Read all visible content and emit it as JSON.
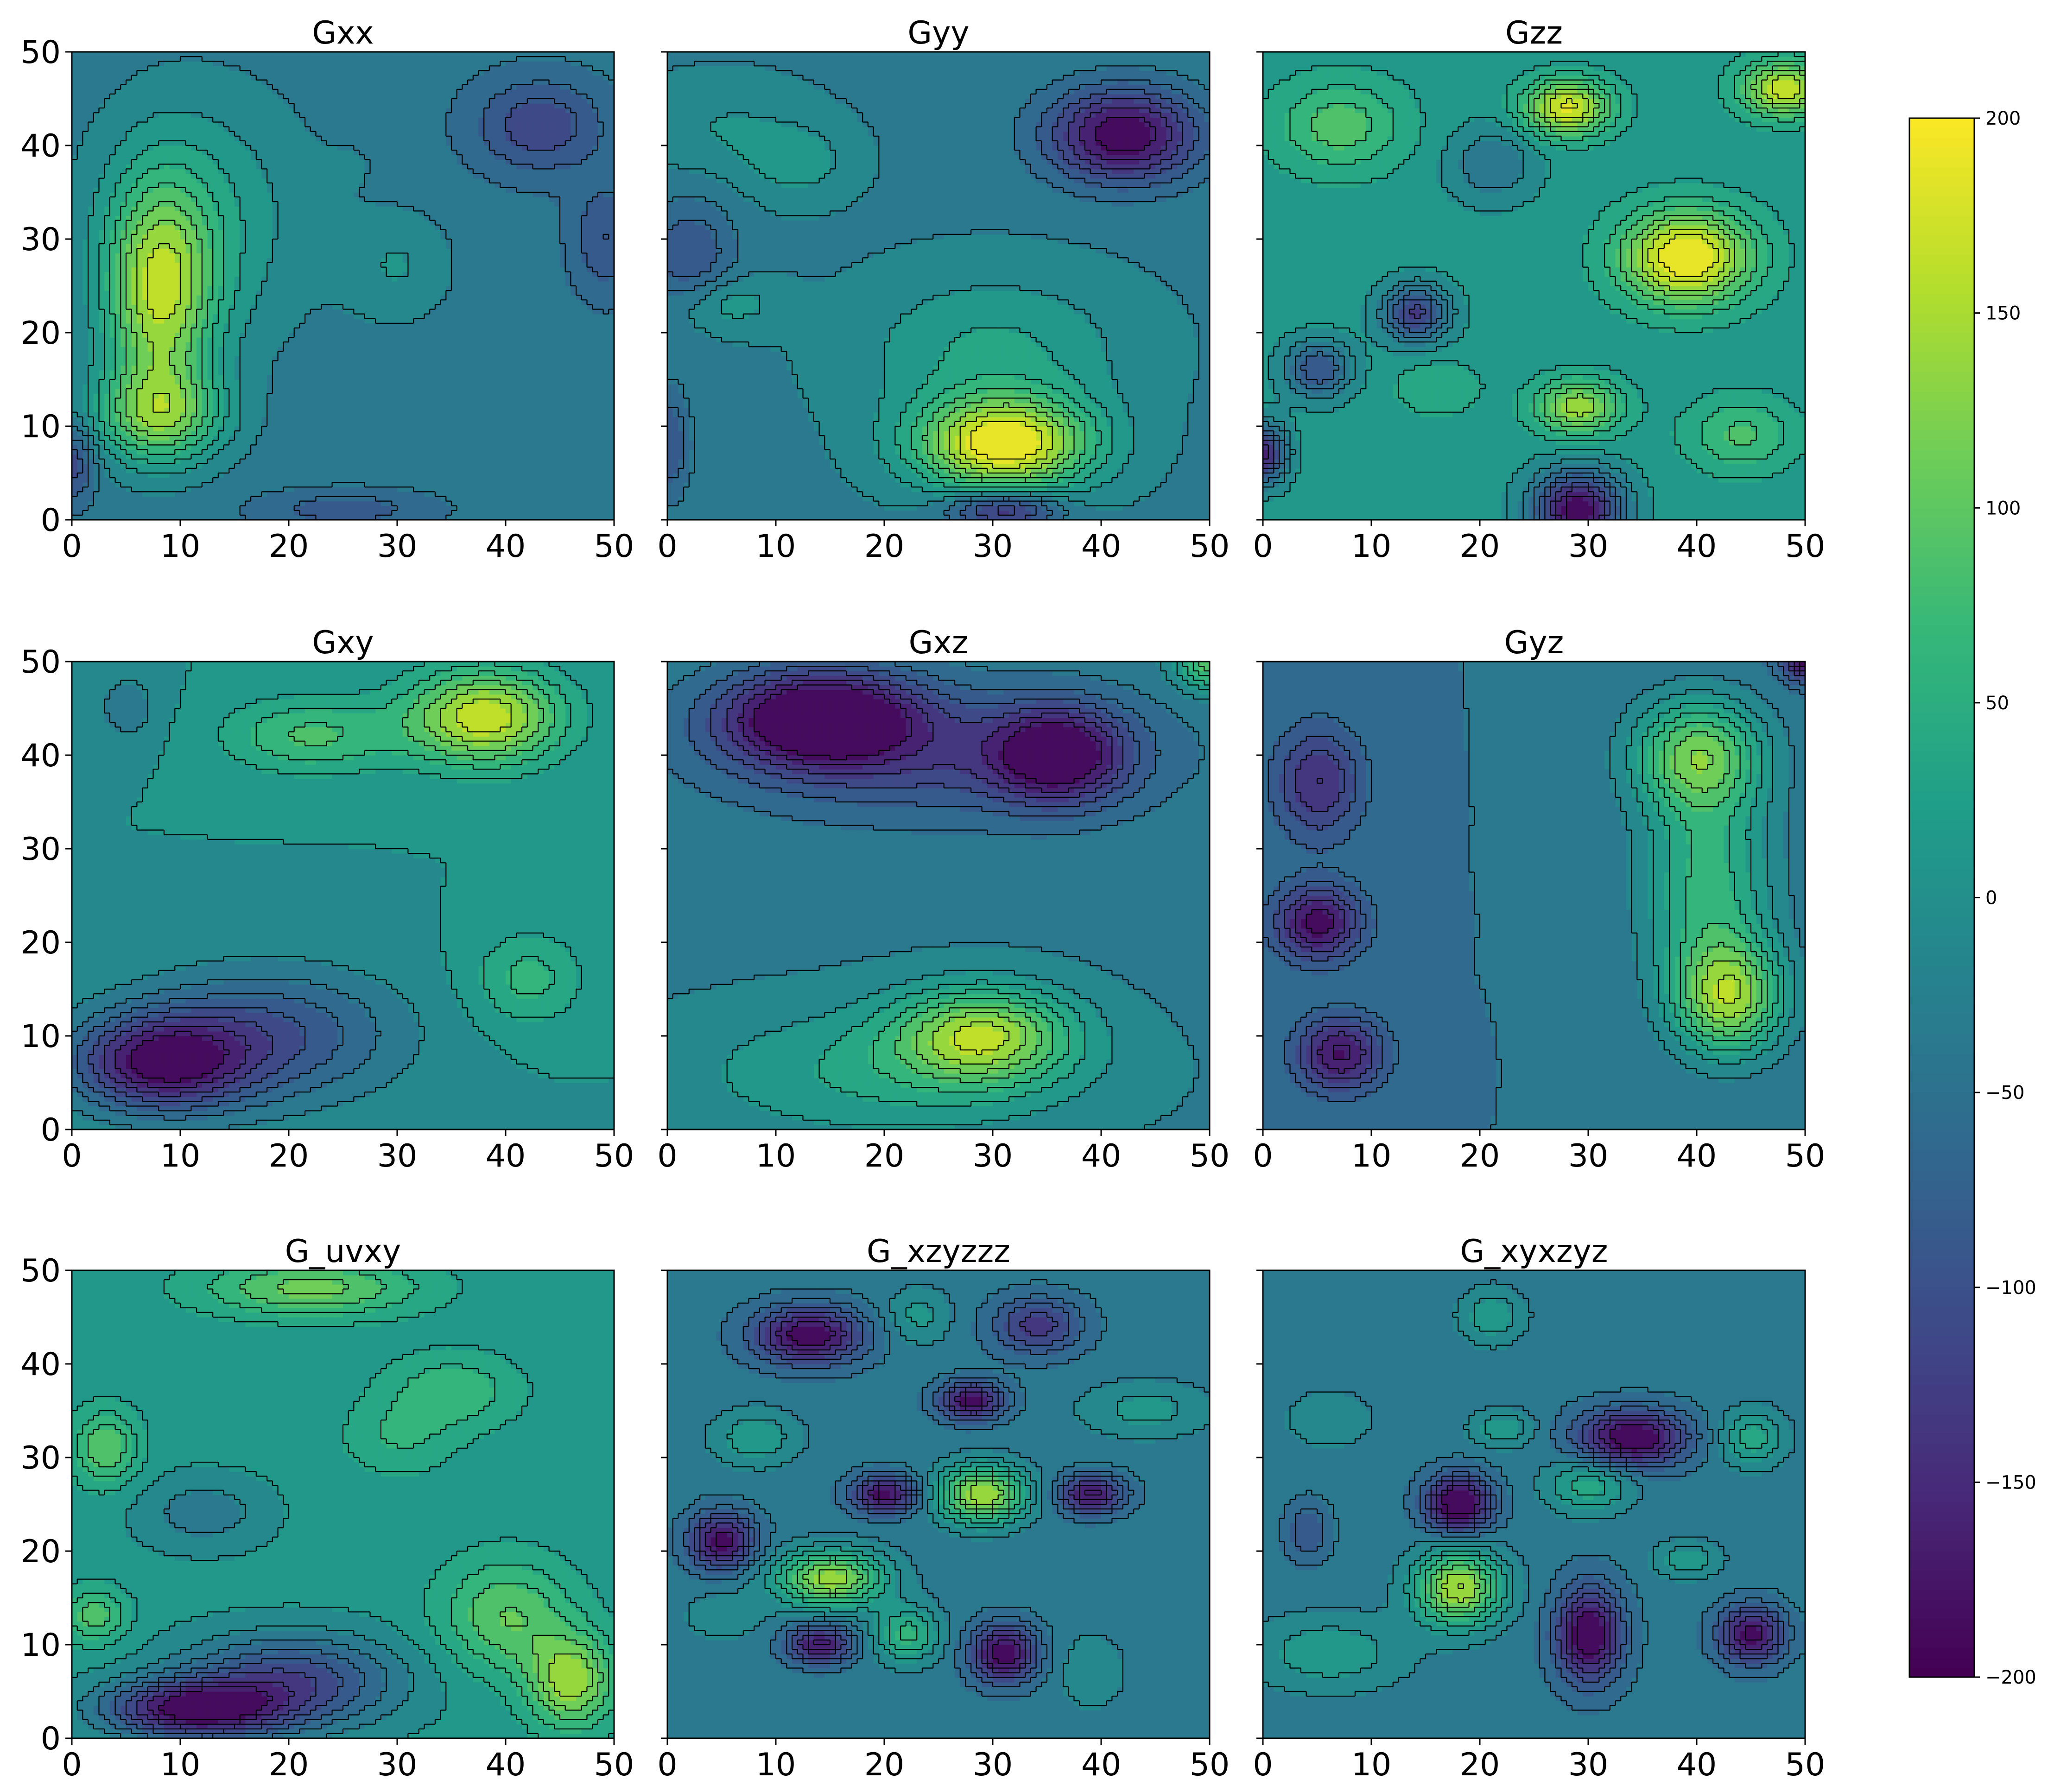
{
  "chart_data": {
    "type": "heatmap",
    "colormap": "viridis",
    "grid": false,
    "colorbar": {
      "position": "right",
      "range": [
        -200,
        200
      ],
      "ticks": [
        -200,
        -150,
        -100,
        -50,
        0,
        50,
        100,
        150,
        200
      ],
      "tick_labels": [
        "−200",
        "−150",
        "−100",
        "−50",
        "0",
        "50",
        "100",
        "150",
        "200"
      ]
    },
    "panels": [
      {
        "title": "Gxx",
        "xlim": [
          0,
          50
        ],
        "ylim": [
          0,
          50
        ],
        "background": -40,
        "blobs": [
          [
            8,
            24,
            170,
            5,
            12
          ],
          [
            8,
            11,
            130,
            6,
            5
          ],
          [
            12,
            32,
            60,
            10,
            14
          ],
          [
            30,
            27,
            40,
            5,
            6
          ],
          [
            26,
            38,
            10,
            3,
            3
          ],
          [
            43,
            42,
            -80,
            6,
            5
          ],
          [
            49,
            30,
            -60,
            3,
            6
          ],
          [
            0,
            6,
            -80,
            2,
            4
          ],
          [
            25,
            1,
            -50,
            8,
            2
          ]
        ]
      },
      {
        "title": "Gyy",
        "xlim": [
          0,
          50
        ],
        "ylim": [
          0,
          50
        ],
        "background": -30,
        "blobs": [
          [
            31,
            8,
            230,
            8,
            5
          ],
          [
            30,
            18,
            60,
            12,
            8
          ],
          [
            5,
            23,
            50,
            5,
            3
          ],
          [
            12,
            38,
            40,
            5,
            4
          ],
          [
            42,
            41,
            -170,
            7,
            5
          ],
          [
            5,
            42,
            30,
            8,
            5
          ],
          [
            2,
            28,
            -70,
            4,
            6
          ],
          [
            0,
            8,
            -70,
            2,
            6
          ],
          [
            31,
            1,
            -130,
            5,
            2
          ]
        ]
      },
      {
        "title": "Gzz",
        "xlim": [
          0,
          50
        ],
        "ylim": [
          0,
          50
        ],
        "background": 10,
        "blobs": [
          [
            28,
            44,
            170,
            4,
            3
          ],
          [
            39,
            28,
            200,
            6,
            5
          ],
          [
            48,
            46,
            160,
            4,
            3
          ],
          [
            7,
            42,
            80,
            6,
            5
          ],
          [
            29,
            1,
            -210,
            4,
            4
          ],
          [
            0,
            7,
            -170,
            2,
            3
          ],
          [
            14,
            22,
            -140,
            3,
            3
          ],
          [
            5,
            16,
            -110,
            3,
            3
          ],
          [
            21,
            38,
            -60,
            4,
            4
          ],
          [
            29,
            12,
            130,
            4,
            3
          ],
          [
            16,
            14,
            40,
            4,
            3
          ],
          [
            44,
            9,
            70,
            5,
            4
          ]
        ]
      },
      {
        "title": "Gxy",
        "xlim": [
          0,
          50
        ],
        "ylim": [
          0,
          50
        ],
        "background": 0,
        "blobs": [
          [
            38,
            44,
            170,
            7,
            5
          ],
          [
            22,
            42,
            80,
            8,
            4
          ],
          [
            8,
            7,
            -170,
            8,
            5
          ],
          [
            18,
            10,
            -100,
            12,
            7
          ],
          [
            5,
            45,
            -40,
            3,
            4
          ],
          [
            42,
            16,
            60,
            5,
            5
          ]
        ]
      },
      {
        "title": "Gxz",
        "xlim": [
          0,
          50
        ],
        "ylim": [
          0,
          50
        ],
        "background": -30,
        "blobs": [
          [
            14,
            44,
            -190,
            9,
            5
          ],
          [
            36,
            40,
            -150,
            6,
            5
          ],
          [
            29,
            10,
            160,
            8,
            5
          ],
          [
            20,
            6,
            60,
            18,
            7
          ],
          [
            50,
            50,
            130,
            3,
            3
          ],
          [
            25,
            40,
            -80,
            20,
            7
          ]
        ]
      },
      {
        "title": "Gyz",
        "xlim": [
          0,
          50
        ],
        "ylim": [
          0,
          50
        ],
        "background": -50,
        "blobs": [
          [
            40,
            40,
            150,
            6,
            6
          ],
          [
            43,
            14,
            170,
            5,
            6
          ],
          [
            41,
            26,
            110,
            6,
            12
          ],
          [
            5,
            22,
            -140,
            4,
            4
          ],
          [
            7,
            8,
            -130,
            4,
            4
          ],
          [
            5,
            37,
            -100,
            4,
            6
          ],
          [
            50,
            50,
            -150,
            2,
            2
          ]
        ]
      },
      {
        "title": "G_uvxy",
        "xlim": [
          0,
          50
        ],
        "ylim": [
          0,
          50
        ],
        "background": 10,
        "blobs": [
          [
            11,
            3,
            -190,
            8,
            3
          ],
          [
            20,
            6,
            -130,
            10,
            5
          ],
          [
            46,
            6,
            130,
            4,
            5
          ],
          [
            40,
            13,
            90,
            6,
            6
          ],
          [
            22,
            48,
            100,
            10,
            3
          ],
          [
            3,
            31,
            90,
            3,
            4
          ],
          [
            35,
            37,
            60,
            6,
            4
          ],
          [
            2,
            13,
            80,
            3,
            3
          ],
          [
            12,
            24,
            -50,
            6,
            4
          ],
          [
            30,
            32,
            40,
            5,
            4
          ]
        ]
      },
      {
        "title": "G_xzyzzz",
        "xlim": [
          0,
          50
        ],
        "ylim": [
          0,
          50
        ],
        "background": -40,
        "blobs": [
          [
            29,
            26,
            190,
            4,
            3
          ],
          [
            15,
            17,
            180,
            5,
            3
          ],
          [
            13,
            43,
            -160,
            5,
            3
          ],
          [
            28,
            36,
            -150,
            3,
            2
          ],
          [
            20,
            26,
            -150,
            3,
            2
          ],
          [
            5,
            21,
            -150,
            3,
            3
          ],
          [
            39,
            26,
            -140,
            3,
            2
          ],
          [
            31,
            9,
            -160,
            3,
            3
          ],
          [
            14,
            10,
            -140,
            3,
            2
          ],
          [
            8,
            32,
            60,
            4,
            3
          ],
          [
            23,
            45,
            50,
            3,
            3
          ],
          [
            44,
            35,
            50,
            6,
            3
          ],
          [
            22,
            11,
            100,
            3,
            3
          ],
          [
            39,
            7,
            40,
            3,
            4
          ],
          [
            34,
            44,
            -100,
            4,
            3
          ],
          [
            5,
            13,
            30,
            4,
            3
          ]
        ]
      },
      {
        "title": "G_xyxzyz",
        "xlim": [
          0,
          50
        ],
        "ylim": [
          0,
          50
        ],
        "background": -40,
        "blobs": [
          [
            18,
            16,
            190,
            4,
            4
          ],
          [
            18,
            25,
            -180,
            3,
            3
          ],
          [
            34,
            32,
            -170,
            5,
            3
          ],
          [
            30,
            11,
            -170,
            3,
            5
          ],
          [
            45,
            11,
            -150,
            3,
            3
          ],
          [
            6,
            9,
            60,
            7,
            4
          ],
          [
            30,
            27,
            80,
            4,
            3
          ],
          [
            22,
            33,
            60,
            3,
            2
          ],
          [
            45,
            32,
            80,
            3,
            3
          ],
          [
            6,
            34,
            40,
            4,
            3
          ],
          [
            21,
            45,
            60,
            3,
            3
          ],
          [
            39,
            19,
            60,
            3,
            2
          ],
          [
            4,
            22,
            -60,
            2,
            3
          ]
        ]
      }
    ],
    "tick_values": [
      0,
      10,
      20,
      30,
      40,
      50
    ]
  }
}
